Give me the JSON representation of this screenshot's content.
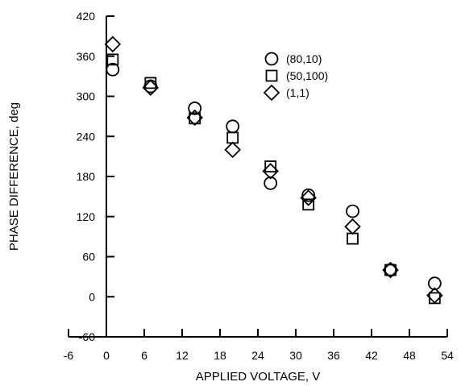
{
  "chart_data": {
    "type": "scatter",
    "title": "",
    "xlabel": "APPLIED VOLTAGE, V",
    "ylabel": "PHASE DIFFERENCE, deg",
    "xlim": [
      -6,
      54
    ],
    "ylim": [
      -60,
      420
    ],
    "x_ticks": [
      "-6",
      "0",
      "6",
      "12",
      "18",
      "24",
      "30",
      "36",
      "42",
      "48",
      "54"
    ],
    "y_ticks": [
      "-60",
      "0",
      "60",
      "120",
      "180",
      "240",
      "300",
      "360",
      "420"
    ],
    "grid": false,
    "legend_position": "top-right",
    "series": [
      {
        "name": "(80,10)",
        "marker": "circle",
        "x": [
          1,
          7,
          14,
          20,
          26,
          32,
          39,
          45,
          52
        ],
        "y": [
          340,
          315,
          282,
          255,
          170,
          152,
          128,
          40,
          20
        ]
      },
      {
        "name": "(50,100)",
        "marker": "square",
        "x": [
          1,
          7,
          14,
          20,
          26,
          32,
          39,
          45,
          52
        ],
        "y": [
          355,
          320,
          267,
          238,
          195,
          138,
          87,
          40,
          -2
        ]
      },
      {
        "name": "(1,1)",
        "marker": "diamond",
        "x": [
          1,
          7,
          14,
          20,
          26,
          32,
          39,
          45,
          52
        ],
        "y": [
          378,
          313,
          268,
          220,
          188,
          148,
          105,
          40,
          2
        ]
      }
    ]
  }
}
